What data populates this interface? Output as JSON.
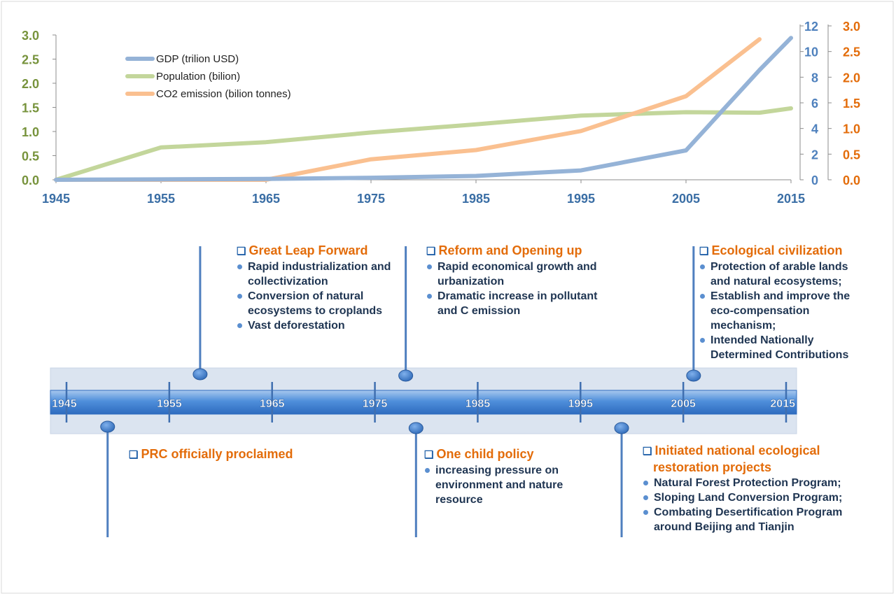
{
  "chart_data": {
    "type": "line",
    "x": [
      1945,
      1955,
      1965,
      1975,
      1985,
      1995,
      2005,
      2012,
      2015
    ],
    "series": [
      {
        "name": "GDP (trilion USD)",
        "axis": "right-inner",
        "color": "#95b3d7",
        "points": [
          [
            1945,
            0.0
          ],
          [
            1955,
            0.03
          ],
          [
            1965,
            0.07
          ],
          [
            1975,
            0.16
          ],
          [
            1985,
            0.3
          ],
          [
            1995,
            0.73
          ],
          [
            2005,
            2.29
          ],
          [
            2012,
            8.56
          ],
          [
            2015,
            11.06
          ]
        ]
      },
      {
        "name": "Population (bilion)",
        "axis": "left",
        "color": "#c3d69b",
        "points": [
          [
            1945,
            0.0
          ],
          [
            1955,
            0.67
          ],
          [
            1965,
            0.78
          ],
          [
            1975,
            0.98
          ],
          [
            1985,
            1.15
          ],
          [
            1995,
            1.33
          ],
          [
            2005,
            1.4
          ],
          [
            2012,
            1.39
          ],
          [
            2015,
            1.48
          ]
        ]
      },
      {
        "name": "CO2 emission (bilion tonnes)",
        "axis": "right-outer",
        "color": "#fac090",
        "points": [
          [
            1945,
            0.0
          ],
          [
            1955,
            0.0
          ],
          [
            1965,
            0.0
          ],
          [
            1975,
            0.4
          ],
          [
            1985,
            0.58
          ],
          [
            1995,
            0.95
          ],
          [
            2005,
            1.63
          ],
          [
            2012,
            2.74
          ]
        ]
      }
    ],
    "x_ticks": [
      "1945",
      "1955",
      "1965",
      "1975",
      "1985",
      "1995",
      "2005",
      "2015"
    ],
    "left_axis": {
      "ticks": [
        "0.0",
        "0.5",
        "1.0",
        "1.5",
        "2.0",
        "2.5",
        "3.0"
      ],
      "ylim": [
        0,
        3.0
      ],
      "color": "#77933c"
    },
    "right_inner_axis": {
      "ticks": [
        "0",
        "2",
        "4",
        "6",
        "8",
        "10",
        "12"
      ],
      "ylim": [
        0,
        12
      ],
      "color": "#4f81bd"
    },
    "right_outer_axis": {
      "ticks": [
        "0.0",
        "0.5",
        "1.0",
        "1.5",
        "2.0",
        "2.5",
        "3.0"
      ],
      "ylim": [
        0,
        3.0
      ],
      "color": "#e36c0a"
    },
    "legend_placement": "top-left",
    "grid": false
  },
  "timeline": {
    "tick_labels": [
      "1945",
      "1955",
      "1965",
      "1975",
      "1985",
      "1995",
      "2005",
      "2015"
    ]
  },
  "events": {
    "great_leap": {
      "year": 1958,
      "title": "Great Leap Forward",
      "items": [
        "Rapid industrialization and collectivization",
        "Conversion of natural ecosystems to croplands",
        "Vast deforestation"
      ]
    },
    "reform": {
      "year": 1978,
      "title": "Reform and Opening up",
      "items": [
        "Rapid economical growth and urbanization",
        "Dramatic increase in pollutant and C emission"
      ]
    },
    "eco_civ": {
      "year": 2006,
      "title": "Ecological civilization",
      "items": [
        "Protection of arable lands and natural ecosystems;",
        "Establish and improve the eco-compensation mechanism;",
        "Intended Nationally Determined Contributions"
      ]
    },
    "prc": {
      "year": 1949,
      "title": "PRC officially proclaimed",
      "items": []
    },
    "one_child": {
      "year": 1979,
      "title": "One child policy",
      "items": [
        "increasing pressure on environment and nature resource"
      ]
    },
    "restoration": {
      "year": 1999,
      "title": "Initiated national ecological restoration projects",
      "items": [
        "Natural Forest Protection Program;",
        "Sloping Land Conversion Program;",
        "Combating Desertification Program around Beijing and Tianjin"
      ]
    }
  }
}
